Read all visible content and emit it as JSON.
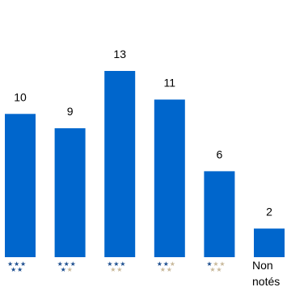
{
  "chart_data": {
    "type": "bar",
    "title": "",
    "xlabel": "",
    "ylabel": "",
    "ylim": [
      0,
      13
    ],
    "grid": false,
    "legend": "none",
    "bar_color": "#0066cc",
    "star_filled_color": "#1e4f8f",
    "star_empty_color": "#c8b89a",
    "categories": [
      {
        "stars": 5,
        "label": ""
      },
      {
        "stars": 4,
        "label": ""
      },
      {
        "stars": 3,
        "label": ""
      },
      {
        "stars": 2,
        "label": ""
      },
      {
        "stars": 1,
        "label": ""
      },
      {
        "stars": 0,
        "label": "Non notés"
      }
    ],
    "values": [
      10,
      9,
      13,
      11,
      6,
      2
    ]
  }
}
